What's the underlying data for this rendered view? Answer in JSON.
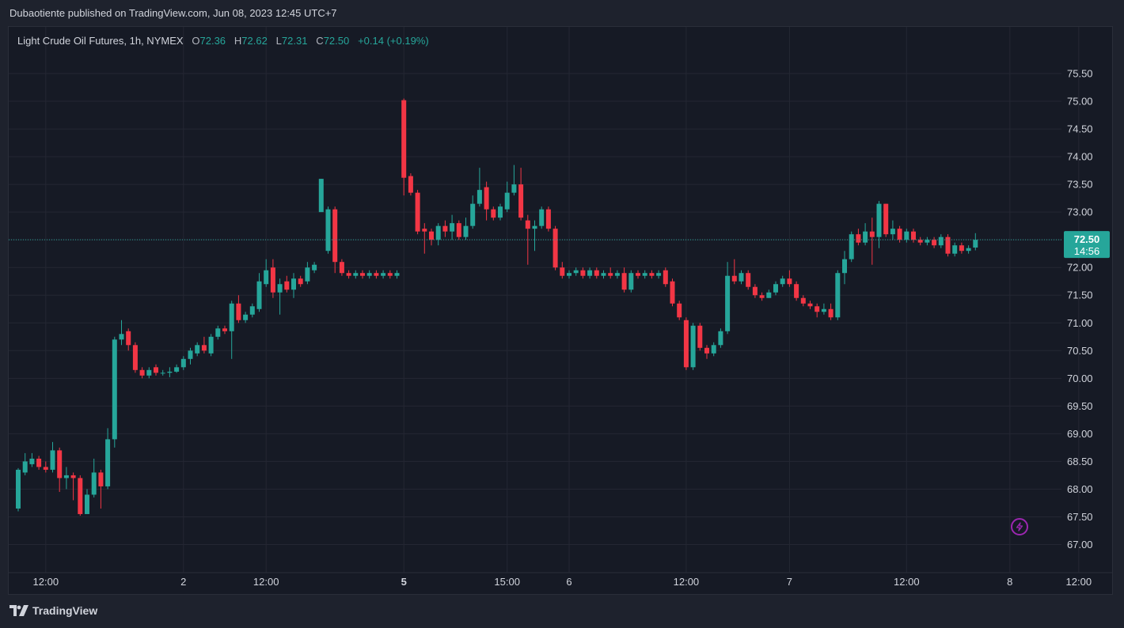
{
  "header": {
    "author": "Dubaotiente",
    "published_text": "published on TradingView.com, Jun 08, 2023 12:45 UTC+7"
  },
  "legend": {
    "symbol": "Light Crude Oil Futures, 1h, NYMEX",
    "open_label": "O",
    "open": "72.36",
    "high_label": "H",
    "high": "72.62",
    "low_label": "L",
    "low": "72.31",
    "close_label": "C",
    "close": "72.50",
    "change": "+0.14 (+0.19%)"
  },
  "price_tag": {
    "price": "72.50",
    "countdown": "14:56"
  },
  "footer": {
    "brand": "TradingView"
  },
  "colors": {
    "up": "#26a69a",
    "down": "#f23645",
    "background": "#161a25",
    "grid": "#242733",
    "text": "#d1d4dc",
    "accent": "#9c27b0"
  },
  "icons": {
    "logo": "tradingview-logo-icon",
    "bolt": "lightning-bolt-icon"
  },
  "chart_data": {
    "type": "candlestick",
    "ylim": [
      66.8,
      75.85
    ],
    "y_ticks": [
      "75.50",
      "75.00",
      "74.50",
      "74.00",
      "73.50",
      "73.00",
      "72.50",
      "72.00",
      "71.50",
      "71.00",
      "70.50",
      "70.00",
      "69.50",
      "69.00",
      "68.50",
      "68.00",
      "67.50",
      "67.00"
    ],
    "x_labels": [
      {
        "label": "12:00",
        "index": 4,
        "bold": false
      },
      {
        "label": "2",
        "index": 24,
        "bold": false
      },
      {
        "label": "12:00",
        "index": 36,
        "bold": false
      },
      {
        "label": "5",
        "index": 56,
        "bold": true
      },
      {
        "label": "15:00",
        "index": 71,
        "bold": false
      },
      {
        "label": "6",
        "index": 80,
        "bold": false
      },
      {
        "label": "12:00",
        "index": 97,
        "bold": false
      },
      {
        "label": "7",
        "index": 112,
        "bold": false
      },
      {
        "label": "12:00",
        "index": 129,
        "bold": false
      },
      {
        "label": "8",
        "index": 144,
        "bold": false
      },
      {
        "label": "12:00",
        "index": 154,
        "bold": false
      }
    ],
    "last_price": 72.5,
    "candles": [
      [
        67.65,
        68.35,
        68.38,
        67.6
      ],
      [
        68.3,
        68.5,
        68.65,
        68.25
      ],
      [
        68.45,
        68.55,
        68.65,
        68.4
      ],
      [
        68.55,
        68.4,
        68.6,
        68.35
      ],
      [
        68.4,
        68.35,
        68.5,
        68.3
      ],
      [
        68.35,
        68.7,
        68.85,
        68.3
      ],
      [
        68.7,
        68.2,
        68.75,
        67.95
      ],
      [
        68.2,
        68.25,
        68.4,
        68.0
      ],
      [
        68.25,
        68.2,
        68.3,
        67.8
      ],
      [
        68.2,
        67.55,
        68.25,
        67.52
      ],
      [
        67.55,
        67.9,
        68.0,
        67.55
      ],
      [
        67.9,
        68.3,
        68.55,
        67.85
      ],
      [
        68.3,
        68.05,
        68.35,
        67.65
      ],
      [
        68.05,
        68.9,
        69.1,
        68.0
      ],
      [
        68.9,
        70.7,
        70.75,
        68.75
      ],
      [
        70.7,
        70.8,
        71.05,
        70.6
      ],
      [
        70.85,
        70.6,
        70.9,
        70.5
      ],
      [
        70.6,
        70.15,
        70.65,
        70.1
      ],
      [
        70.15,
        70.05,
        70.2,
        70.0
      ],
      [
        70.05,
        70.15,
        70.2,
        70.0
      ],
      [
        70.2,
        70.1,
        70.25,
        70.05
      ],
      [
        70.1,
        70.1,
        70.15,
        70.05
      ],
      [
        70.1,
        70.12,
        70.2,
        70.02
      ],
      [
        70.12,
        70.2,
        70.25,
        70.1
      ],
      [
        70.2,
        70.35,
        70.4,
        70.15
      ],
      [
        70.35,
        70.5,
        70.55,
        70.25
      ],
      [
        70.45,
        70.6,
        70.65,
        70.4
      ],
      [
        70.6,
        70.5,
        70.75,
        70.45
      ],
      [
        70.45,
        70.75,
        70.8,
        70.4
      ],
      [
        70.75,
        70.9,
        70.95,
        70.7
      ],
      [
        70.9,
        70.85,
        70.95,
        70.8
      ],
      [
        70.85,
        71.35,
        71.4,
        70.35
      ],
      [
        71.35,
        71.05,
        71.5,
        71.0
      ],
      [
        71.05,
        71.15,
        71.2,
        71.0
      ],
      [
        71.15,
        71.3,
        71.35,
        71.1
      ],
      [
        71.25,
        71.75,
        71.9,
        71.2
      ],
      [
        71.7,
        71.95,
        72.15,
        71.65
      ],
      [
        72.0,
        71.55,
        72.15,
        71.45
      ],
      [
        71.55,
        71.7,
        71.8,
        71.15
      ],
      [
        71.75,
        71.6,
        71.85,
        71.55
      ],
      [
        71.6,
        71.8,
        71.9,
        71.45
      ],
      [
        71.8,
        71.7,
        71.85,
        71.65
      ],
      [
        71.75,
        72.0,
        72.1,
        71.7
      ],
      [
        71.95,
        72.05,
        72.1,
        71.9
      ],
      [
        73.0,
        73.6,
        73.4,
        73.6
      ],
      [
        72.3,
        73.05,
        73.1,
        72.25
      ],
      [
        73.05,
        72.1,
        73.1,
        71.9
      ],
      [
        72.1,
        71.9,
        72.15,
        71.85
      ],
      [
        71.9,
        71.85,
        71.95,
        71.8
      ],
      [
        71.85,
        71.9,
        71.95,
        71.8
      ],
      [
        71.9,
        71.85,
        71.95,
        71.8
      ],
      [
        71.85,
        71.9,
        71.95,
        71.8
      ],
      [
        71.9,
        71.85,
        71.95,
        71.8
      ],
      [
        71.85,
        71.9,
        71.95,
        71.8
      ],
      [
        71.9,
        71.85,
        71.95,
        71.8
      ],
      [
        71.85,
        71.9,
        71.95,
        71.8
      ],
      [
        75.02,
        73.62,
        75.05,
        73.3
      ],
      [
        73.65,
        73.35,
        73.7,
        73.3
      ],
      [
        73.35,
        72.65,
        73.4,
        72.6
      ],
      [
        72.7,
        72.65,
        72.8,
        72.25
      ],
      [
        72.65,
        72.5,
        72.7,
        72.4
      ],
      [
        72.5,
        72.75,
        72.8,
        72.4
      ],
      [
        72.75,
        72.65,
        72.85,
        72.55
      ],
      [
        72.65,
        72.8,
        72.95,
        72.5
      ],
      [
        72.8,
        72.55,
        72.85,
        72.5
      ],
      [
        72.55,
        72.75,
        72.9,
        72.5
      ],
      [
        72.75,
        73.15,
        73.3,
        72.7
      ],
      [
        73.15,
        73.4,
        73.8,
        73.1
      ],
      [
        73.45,
        73.05,
        73.55,
        72.85
      ],
      [
        73.05,
        72.9,
        73.1,
        72.85
      ],
      [
        72.9,
        73.1,
        73.15,
        72.85
      ],
      [
        73.05,
        73.35,
        73.55,
        73.0
      ],
      [
        73.35,
        73.5,
        73.85,
        73.3
      ],
      [
        73.5,
        72.9,
        73.8,
        72.85
      ],
      [
        72.85,
        72.7,
        72.95,
        72.05
      ],
      [
        72.7,
        72.75,
        72.85,
        72.3
      ],
      [
        72.75,
        73.05,
        73.1,
        72.7
      ],
      [
        73.05,
        72.7,
        73.1,
        72.65
      ],
      [
        72.7,
        72.0,
        72.75,
        71.95
      ],
      [
        72.0,
        71.85,
        72.1,
        71.8
      ],
      [
        71.85,
        71.9,
        71.95,
        71.8
      ],
      [
        71.9,
        71.95,
        72.0,
        71.85
      ],
      [
        71.95,
        71.85,
        72.0,
        71.8
      ],
      [
        71.85,
        71.95,
        72.0,
        71.8
      ],
      [
        71.95,
        71.85,
        72.0,
        71.8
      ],
      [
        71.85,
        71.9,
        71.95,
        71.8
      ],
      [
        71.9,
        71.85,
        72.0,
        71.8
      ],
      [
        71.85,
        71.9,
        71.95,
        71.8
      ],
      [
        71.9,
        71.6,
        72.0,
        71.55
      ],
      [
        71.6,
        71.9,
        71.95,
        71.55
      ],
      [
        71.9,
        71.85,
        71.95,
        71.8
      ],
      [
        71.85,
        71.9,
        71.95,
        71.8
      ],
      [
        71.9,
        71.85,
        71.95,
        71.8
      ],
      [
        71.85,
        71.9,
        71.95,
        71.8
      ],
      [
        71.95,
        71.7,
        72.0,
        71.65
      ],
      [
        71.75,
        71.35,
        71.8,
        71.3
      ],
      [
        71.35,
        71.1,
        71.4,
        71.05
      ],
      [
        71.05,
        70.2,
        71.1,
        70.15
      ],
      [
        70.2,
        70.95,
        71.0,
        70.15
      ],
      [
        70.95,
        70.55,
        71.0,
        70.5
      ],
      [
        70.55,
        70.45,
        70.6,
        70.35
      ],
      [
        70.45,
        70.6,
        70.65,
        70.4
      ],
      [
        70.6,
        70.85,
        70.9,
        70.55
      ],
      [
        70.85,
        71.85,
        72.1,
        70.8
      ],
      [
        71.85,
        71.75,
        72.15,
        71.7
      ],
      [
        71.75,
        71.9,
        71.95,
        71.7
      ],
      [
        71.9,
        71.65,
        71.95,
        71.6
      ],
      [
        71.65,
        71.5,
        71.7,
        71.45
      ],
      [
        71.5,
        71.45,
        71.55,
        71.4
      ],
      [
        71.45,
        71.55,
        71.6,
        71.45
      ],
      [
        71.55,
        71.7,
        71.75,
        71.5
      ],
      [
        71.7,
        71.8,
        71.85,
        71.65
      ],
      [
        71.8,
        71.7,
        71.95,
        71.65
      ],
      [
        71.7,
        71.45,
        71.75,
        71.4
      ],
      [
        71.45,
        71.35,
        71.5,
        71.3
      ],
      [
        71.35,
        71.3,
        71.4,
        71.25
      ],
      [
        71.3,
        71.2,
        71.35,
        71.1
      ],
      [
        71.2,
        71.25,
        71.35,
        71.15
      ],
      [
        71.25,
        71.1,
        71.35,
        71.05
      ],
      [
        71.1,
        71.9,
        71.95,
        71.05
      ],
      [
        71.9,
        72.15,
        72.3,
        71.7
      ],
      [
        72.15,
        72.6,
        72.65,
        72.1
      ],
      [
        72.6,
        72.45,
        72.7,
        72.4
      ],
      [
        72.45,
        72.65,
        72.8,
        72.4
      ],
      [
        72.65,
        72.55,
        72.9,
        72.05
      ],
      [
        72.55,
        73.15,
        73.2,
        72.35
      ],
      [
        73.15,
        72.6,
        73.15,
        72.55
      ],
      [
        72.6,
        72.7,
        72.85,
        72.5
      ],
      [
        72.7,
        72.5,
        72.75,
        72.45
      ],
      [
        72.5,
        72.65,
        72.7,
        72.45
      ],
      [
        72.65,
        72.5,
        72.7,
        72.45
      ],
      [
        72.5,
        72.45,
        72.55,
        72.4
      ],
      [
        72.45,
        72.5,
        72.55,
        72.4
      ],
      [
        72.5,
        72.4,
        72.55,
        72.35
      ],
      [
        72.4,
        72.55,
        72.6,
        72.35
      ],
      [
        72.55,
        72.25,
        72.6,
        72.2
      ],
      [
        72.25,
        72.4,
        72.45,
        72.2
      ],
      [
        72.4,
        72.3,
        72.45,
        72.25
      ],
      [
        72.3,
        72.35,
        72.4,
        72.25
      ],
      [
        72.36,
        72.5,
        72.62,
        72.31
      ]
    ]
  }
}
